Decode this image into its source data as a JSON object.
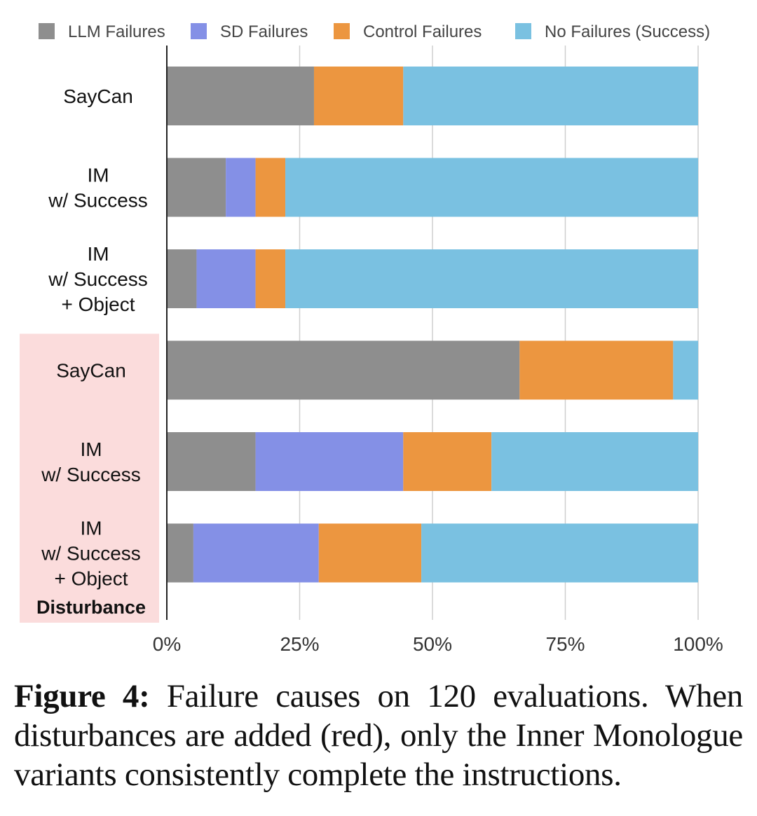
{
  "chart_data": {
    "type": "bar",
    "orientation": "horizontal",
    "stacked": true,
    "categories": [
      [
        "SayCan"
      ],
      [
        "IM",
        "w/ Success"
      ],
      [
        "IM",
        "w/ Success",
        "+ Object"
      ],
      [
        "SayCan"
      ],
      [
        "IM",
        "w/ Success"
      ],
      [
        "IM",
        "w/ Success",
        "+ Object"
      ]
    ],
    "series": [
      {
        "name": "LLM Failures",
        "color": "#8e8e8e",
        "values": [
          27.7,
          11.1,
          5.6,
          66.4,
          16.7,
          5.0
        ]
      },
      {
        "name": "SD Failures",
        "color": "#8490e6",
        "values": [
          0.0,
          5.6,
          11.1,
          0.0,
          27.8,
          23.6
        ]
      },
      {
        "name": "Control Failures",
        "color": "#ec9640",
        "values": [
          16.8,
          5.6,
          5.6,
          28.9,
          16.6,
          19.3
        ]
      },
      {
        "name": "No Failures (Success)",
        "color": "#7ac1e1",
        "values": [
          55.5,
          77.7,
          77.7,
          4.7,
          38.9,
          52.1
        ]
      }
    ],
    "xlim": [
      0,
      100
    ],
    "xticks": [
      "0%",
      "25%",
      "50%",
      "75%",
      "100%"
    ],
    "grid": true,
    "legend_position": "top",
    "disturbance_group": {
      "label": "Disturbance",
      "categories_start_index": 3,
      "highlight_color": "#fbdcdc"
    }
  },
  "caption": {
    "prefix": "Figure 4:",
    "text": "Failure causes on 120 evaluations. When disturbances are added (red), only the Inner Monologue variants consistently complete the instructions."
  }
}
